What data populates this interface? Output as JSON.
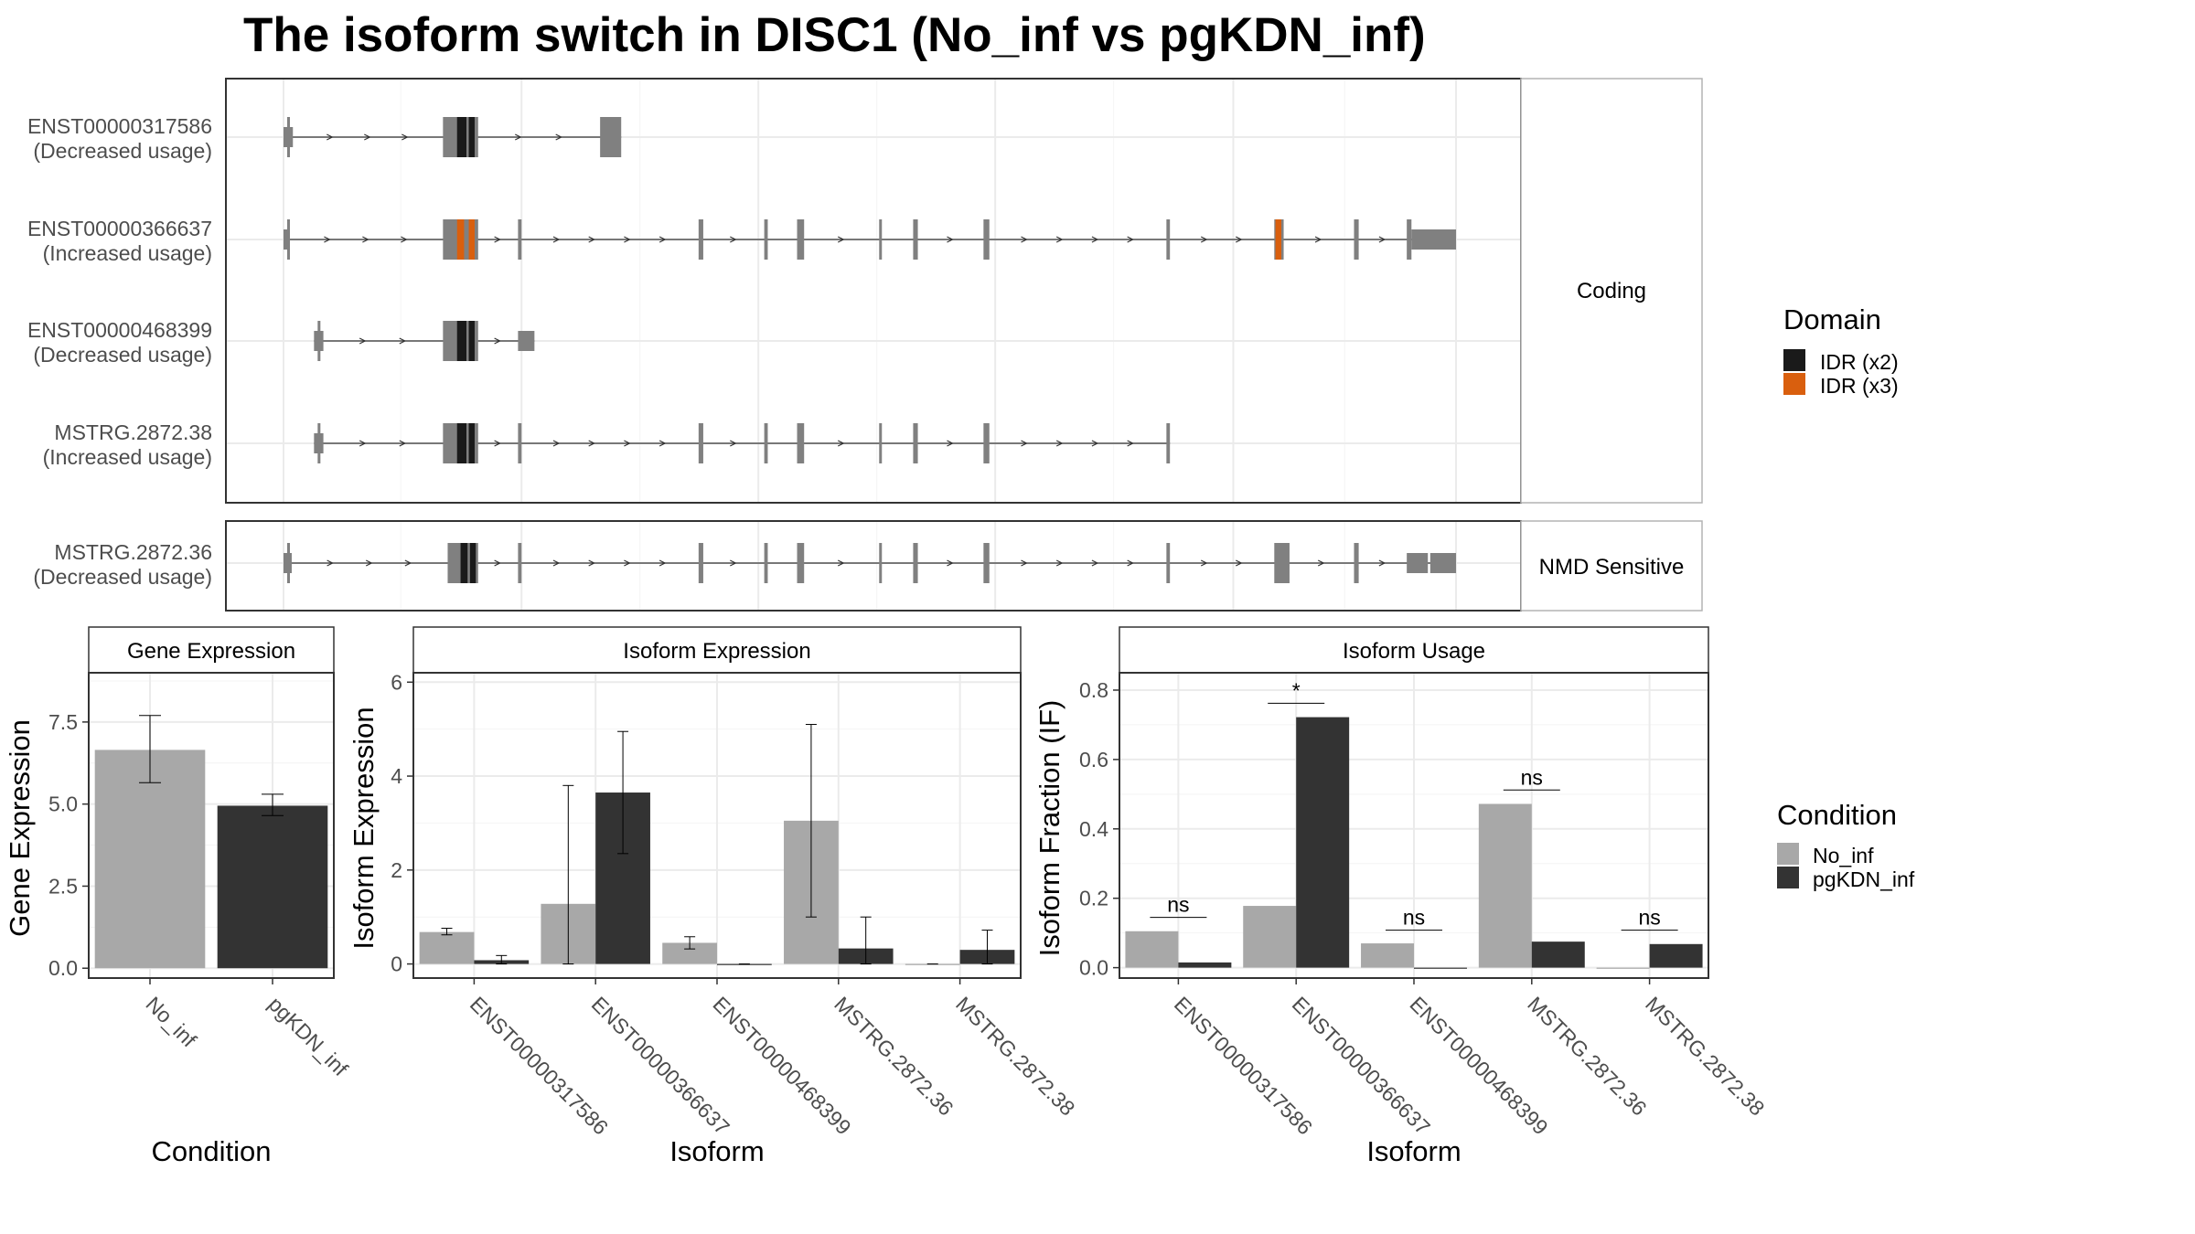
{
  "title": "The isoform switch in DISC1 (No_inf vs pgKDN_inf)",
  "colors": {
    "exon": "#808080",
    "idr2": "#1a1a1a",
    "idr3": "#d95f0e",
    "no_inf": "#a8a8a8",
    "pgkdn_inf": "#333333",
    "grid": "#ebebeb",
    "panel_border": "#333333",
    "strip_border": "#b3b3b3"
  },
  "chart_data": [
    {
      "type": "gene-structure",
      "facet_labels": [
        "Coding",
        "NMD Sensitive"
      ],
      "legend": {
        "title": "Domain",
        "items": [
          {
            "label": "IDR (x2)",
            "color": "#1a1a1a"
          },
          {
            "label": "IDR (x3)",
            "color": "#d95f0e"
          }
        ]
      },
      "transcripts": [
        {
          "id": "ENST00000317586",
          "usage_label": "(Decreased usage)",
          "facet": "Coding",
          "exons": [
            [
              0.0,
              0.008,
              "utr"
            ],
            [
              0.136,
              0.166,
              "cds"
            ],
            [
              0.27,
              0.288,
              "cds"
            ]
          ],
          "domains": [
            [
              0.148,
              0.156,
              "IDR (x2)"
            ],
            [
              0.158,
              0.163,
              "IDR (x2)"
            ]
          ]
        },
        {
          "id": "ENST00000366637",
          "usage_label": "(Increased usage)",
          "facet": "Coding",
          "exons": [
            [
              0.0,
              0.005,
              "utr"
            ],
            [
              0.136,
              0.166,
              "cds"
            ],
            [
              0.2,
              0.203,
              "cds"
            ],
            [
              0.354,
              0.358,
              "cds"
            ],
            [
              0.41,
              0.413,
              "cds"
            ],
            [
              0.438,
              0.444,
              "cds"
            ],
            [
              0.508,
              0.51,
              "cds"
            ],
            [
              0.537,
              0.541,
              "cds"
            ],
            [
              0.597,
              0.602,
              "cds"
            ],
            [
              0.753,
              0.756,
              "cds"
            ],
            [
              0.845,
              0.853,
              "cds"
            ],
            [
              0.913,
              0.917,
              "cds"
            ],
            [
              0.958,
              0.962,
              "cds"
            ],
            [
              0.962,
              1.0,
              "utr"
            ]
          ],
          "domains": [
            [
              0.148,
              0.154,
              "IDR (x3)"
            ],
            [
              0.158,
              0.163,
              "IDR (x3)"
            ],
            [
              0.846,
              0.851,
              "IDR (x3)"
            ]
          ]
        },
        {
          "id": "ENST00000468399",
          "usage_label": "(Decreased usage)",
          "facet": "Coding",
          "exons": [
            [
              0.026,
              0.034,
              "utr"
            ],
            [
              0.136,
              0.166,
              "cds"
            ],
            [
              0.2,
              0.214,
              "utr"
            ]
          ],
          "domains": [
            [
              0.148,
              0.156,
              "IDR (x2)"
            ],
            [
              0.158,
              0.163,
              "IDR (x2)"
            ]
          ]
        },
        {
          "id": "MSTRG.2872.38",
          "usage_label": "(Increased usage)",
          "facet": "Coding",
          "exons": [
            [
              0.026,
              0.034,
              "utr"
            ],
            [
              0.136,
              0.166,
              "cds"
            ],
            [
              0.2,
              0.203,
              "cds"
            ],
            [
              0.354,
              0.358,
              "cds"
            ],
            [
              0.41,
              0.413,
              "cds"
            ],
            [
              0.438,
              0.444,
              "cds"
            ],
            [
              0.508,
              0.51,
              "cds"
            ],
            [
              0.537,
              0.541,
              "cds"
            ],
            [
              0.597,
              0.602,
              "cds"
            ],
            [
              0.753,
              0.756,
              "cds"
            ]
          ],
          "domains": [
            [
              0.148,
              0.156,
              "IDR (x2)"
            ],
            [
              0.158,
              0.163,
              "IDR (x2)"
            ]
          ]
        },
        {
          "id": "MSTRG.2872.36",
          "usage_label": "(Decreased usage)",
          "facet": "NMD Sensitive",
          "exons": [
            [
              0.0,
              0.007,
              "utr"
            ],
            [
              0.14,
              0.166,
              "cds"
            ],
            [
              0.2,
              0.203,
              "cds"
            ],
            [
              0.354,
              0.358,
              "cds"
            ],
            [
              0.41,
              0.413,
              "cds"
            ],
            [
              0.438,
              0.444,
              "cds"
            ],
            [
              0.508,
              0.51,
              "cds"
            ],
            [
              0.537,
              0.541,
              "cds"
            ],
            [
              0.597,
              0.602,
              "cds"
            ],
            [
              0.753,
              0.756,
              "cds"
            ],
            [
              0.845,
              0.858,
              "cds"
            ],
            [
              0.913,
              0.917,
              "cds"
            ],
            [
              0.958,
              0.976,
              "utr"
            ],
            [
              0.978,
              1.0,
              "utr"
            ]
          ],
          "domains": [
            [
              0.151,
              0.157,
              "IDR (x2)"
            ],
            [
              0.159,
              0.164,
              "IDR (x2)"
            ]
          ]
        }
      ]
    },
    {
      "type": "bar",
      "title": "Gene Expression",
      "xlabel": "Condition",
      "ylabel": "Gene Expression",
      "categories": [
        "No_inf",
        "pgKDN_inf"
      ],
      "values": [
        6.65,
        4.95
      ],
      "error_low": [
        5.65,
        4.65
      ],
      "error_high": [
        7.7,
        5.3
      ],
      "ylim": [
        -0.3,
        9.0
      ],
      "yticks": [
        0.0,
        2.5,
        5.0,
        7.5
      ],
      "yticklabels": [
        "0.0",
        "2.5",
        "5.0",
        "7.5"
      ]
    },
    {
      "type": "bar",
      "title": "Isoform Expression",
      "xlabel": "Isoform",
      "ylabel": "Isoform Expression",
      "categories": [
        "ENST00000317586",
        "ENST00000366637",
        "ENST00000468399",
        "MSTRG.2872.36",
        "MSTRG.2872.38"
      ],
      "series": [
        {
          "name": "No_inf",
          "values": [
            0.68,
            1.28,
            0.45,
            3.05,
            0.0
          ],
          "error_low": [
            0.62,
            0.0,
            0.32,
            1.0,
            0.0
          ],
          "error_high": [
            0.76,
            3.8,
            0.58,
            5.1,
            0.0
          ]
        },
        {
          "name": "pgKDN_inf",
          "values": [
            0.08,
            3.65,
            0.0,
            0.33,
            0.3
          ],
          "error_low": [
            0.0,
            2.35,
            0.0,
            0.0,
            0.0
          ],
          "error_high": [
            0.18,
            4.95,
            0.0,
            1.0,
            0.72
          ]
        }
      ],
      "ylim": [
        -0.3,
        6.2
      ],
      "yticks": [
        0,
        2,
        4,
        6
      ],
      "yticklabels": [
        "0",
        "2",
        "4",
        "6"
      ]
    },
    {
      "type": "bar",
      "title": "Isoform Usage",
      "xlabel": "Isoform",
      "ylabel": "Isoform Fraction (IF)",
      "categories": [
        "ENST00000317586",
        "ENST00000366637",
        "ENST00000468399",
        "MSTRG.2872.36",
        "MSTRG.2872.38"
      ],
      "series": [
        {
          "name": "No_inf",
          "values": [
            0.105,
            0.178,
            0.07,
            0.472,
            0.0
          ]
        },
        {
          "name": "pgKDN_inf",
          "values": [
            0.015,
            0.722,
            0.0,
            0.075,
            0.068
          ]
        }
      ],
      "significance": [
        {
          "label": "ns",
          "y": 0.145
        },
        {
          "label": "*",
          "y": 0.762
        },
        {
          "label": "ns",
          "y": 0.108
        },
        {
          "label": "ns",
          "y": 0.512
        },
        {
          "label": "ns",
          "y": 0.108
        }
      ],
      "ylim": [
        -0.03,
        0.85
      ],
      "yticks": [
        0.0,
        0.2,
        0.4,
        0.6,
        0.8
      ],
      "yticklabels": [
        "0.0",
        "0.2",
        "0.4",
        "0.6",
        "0.8"
      ]
    }
  ],
  "condition_legend": {
    "title": "Condition",
    "items": [
      {
        "label": "No_inf",
        "color": "#a8a8a8"
      },
      {
        "label": "pgKDN_inf",
        "color": "#333333"
      }
    ]
  }
}
